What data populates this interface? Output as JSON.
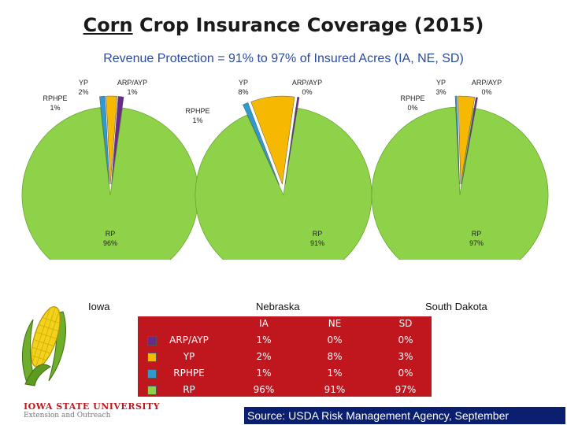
{
  "title_underlined": "Corn",
  "title_rest": " Crop Insurance Coverage (2015)",
  "subtitle": "Revenue Protection = 91% to 97% of Insured Acres  (IA, NE, SD)",
  "state_labels": [
    "Iowa",
    "Nebraska",
    "South Dakota"
  ],
  "colors": {
    "RP": "#8ed24a",
    "YP": "#f6b800",
    "ARP/AYP": "#6a2a8a",
    "RPHPE": "#2e9ad0",
    "table_bg": "#c0171f",
    "source_bg": "#0a1f6f"
  },
  "chart_data": [
    {
      "type": "pie",
      "name": "Iowa",
      "slices": [
        {
          "label": "RP",
          "value": 96,
          "text": "96%"
        },
        {
          "label": "RPHPE",
          "value": 1,
          "text": "1%"
        },
        {
          "label": "YP",
          "value": 2,
          "text": "2%"
        },
        {
          "label": "ARP/AYP",
          "value": 1,
          "text": "1%"
        }
      ]
    },
    {
      "type": "pie",
      "name": "Nebraska",
      "slices": [
        {
          "label": "RP",
          "value": 91,
          "text": "91%"
        },
        {
          "label": "RPHPE",
          "value": 1,
          "text": "1%"
        },
        {
          "label": "YP",
          "value": 8,
          "text": "8%"
        },
        {
          "label": "ARP/AYP",
          "value": 0,
          "text": "0%"
        }
      ]
    },
    {
      "type": "pie",
      "name": "South Dakota",
      "slices": [
        {
          "label": "RP",
          "value": 97,
          "text": "97%"
        },
        {
          "label": "RPHPE",
          "value": 0,
          "text": "0%"
        },
        {
          "label": "YP",
          "value": 3,
          "text": "3%"
        },
        {
          "label": "ARP/AYP",
          "value": 0,
          "text": "0%"
        }
      ]
    }
  ],
  "table": {
    "headers": [
      "",
      "IA",
      "NE",
      "SD"
    ],
    "rows": [
      {
        "label": "ARP/AYP",
        "color": "#6a2a8a",
        "values": [
          "1%",
          "0%",
          "0%"
        ]
      },
      {
        "label": "YP",
        "color": "#f6b800",
        "values": [
          "2%",
          "8%",
          "3%"
        ]
      },
      {
        "label": "RPHPE",
        "color": "#2e9ad0",
        "values": [
          "1%",
          "1%",
          "0%"
        ]
      },
      {
        "label": "RP",
        "color": "#8ed24a",
        "values": [
          "96%",
          "91%",
          "97%"
        ]
      }
    ]
  },
  "logo": {
    "line1": "IOWA STATE UNIVERSITY",
    "line2": "Extension and Outreach"
  },
  "source": "Source: USDA Risk Management Agency, September"
}
